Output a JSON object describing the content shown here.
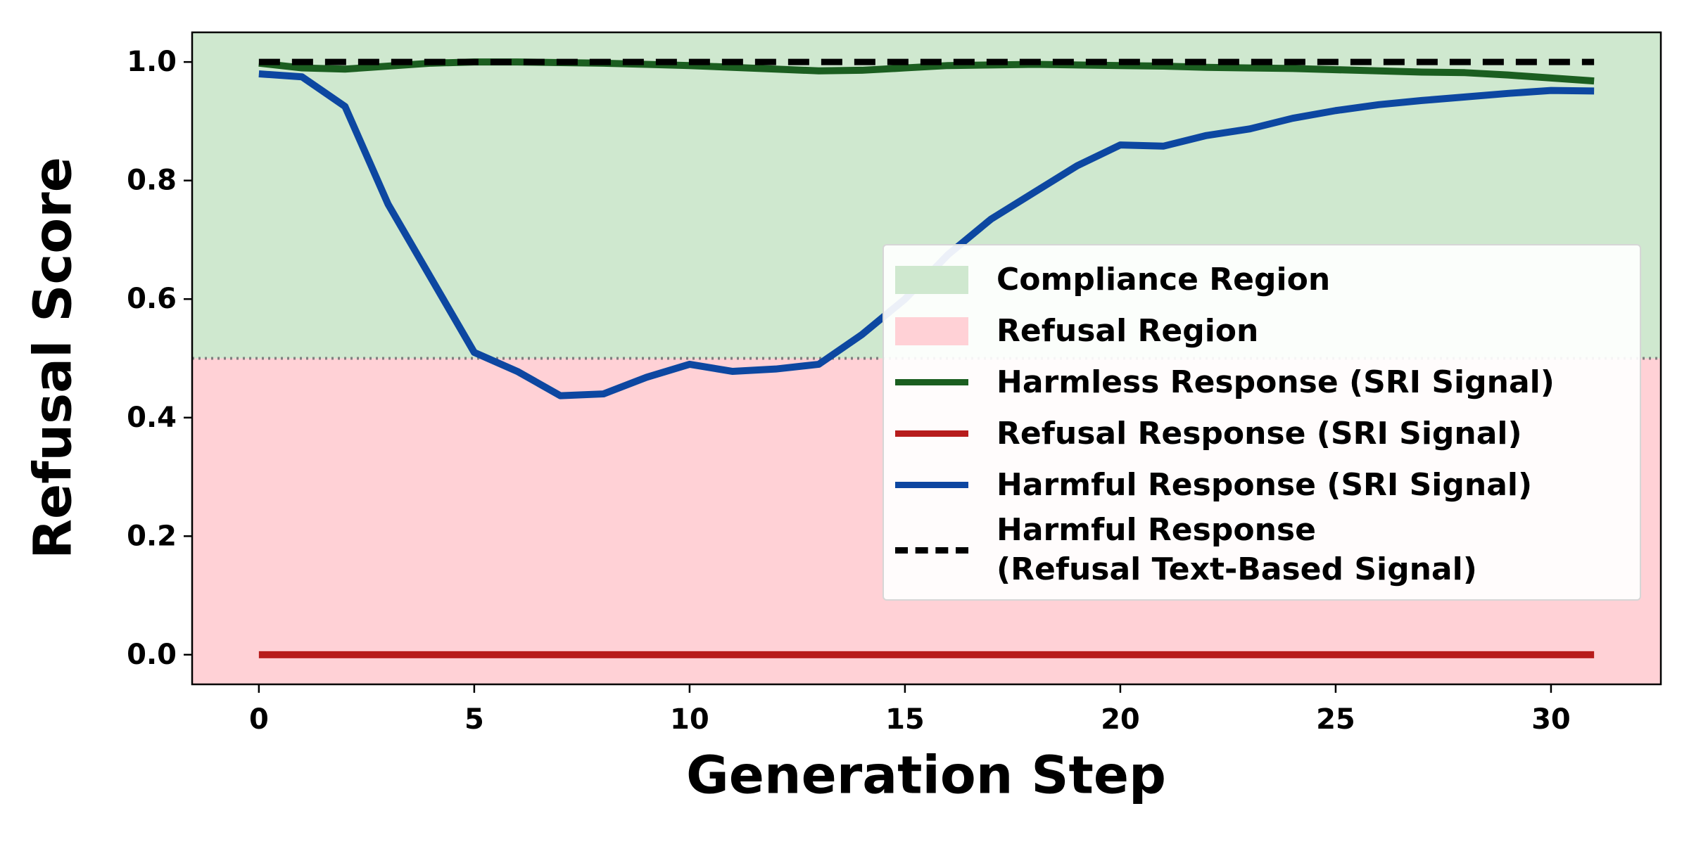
{
  "chart_data": {
    "type": "line",
    "xlabel": "Generation Step",
    "ylabel": "Refusal Score",
    "x": [
      0,
      1,
      2,
      3,
      4,
      5,
      6,
      7,
      8,
      9,
      10,
      11,
      12,
      13,
      14,
      15,
      16,
      17,
      18,
      19,
      20,
      21,
      22,
      23,
      24,
      25,
      26,
      27,
      28,
      29,
      30,
      31
    ],
    "xlim": [
      -1.55,
      32.55
    ],
    "xticks": [
      0,
      5,
      10,
      15,
      20,
      25,
      30
    ],
    "ylim": [
      -0.05,
      1.05
    ],
    "yticks": [
      {
        "value": 0,
        "label": "0.0"
      },
      {
        "value": 0.2,
        "label": "0.2"
      },
      {
        "value": 0.4,
        "label": "0.4"
      },
      {
        "value": 0.6,
        "label": "0.6"
      },
      {
        "value": 0.8,
        "label": "0.8"
      },
      {
        "value": 1,
        "label": "1.0"
      }
    ],
    "grid": false,
    "threshold": 0.5,
    "regions": [
      {
        "name": "Compliance Region",
        "color": "#cfe8cf",
        "span": [
          0.5,
          1.05
        ]
      },
      {
        "name": "Refusal Region",
        "color": "#ffd1d6",
        "span": [
          -0.05,
          0.5
        ]
      }
    ],
    "series": [
      {
        "name": "Harmless Response (SRI Signal)",
        "color": "#1b5e20",
        "style": "solid",
        "values": [
          0.998,
          0.99,
          0.988,
          0.993,
          0.998,
          1.0,
          1.0,
          0.999,
          0.998,
          0.996,
          0.994,
          0.991,
          0.988,
          0.985,
          0.986,
          0.99,
          0.994,
          0.995,
          0.996,
          0.995,
          0.994,
          0.993,
          0.991,
          0.99,
          0.989,
          0.987,
          0.985,
          0.983,
          0.982,
          0.978,
          0.973,
          0.968
        ]
      },
      {
        "name": "Refusal Response (SRI Signal)",
        "color": "#b71c1c",
        "style": "solid",
        "values": [
          0,
          0,
          0,
          0,
          0,
          0,
          0,
          0,
          0,
          0,
          0,
          0,
          0,
          0,
          0,
          0,
          0,
          0,
          0,
          0,
          0,
          0,
          0,
          0,
          0,
          0,
          0,
          0,
          0,
          0,
          0,
          0
        ]
      },
      {
        "name": "Harmful Response (SRI Signal)",
        "color": "#0d47a1",
        "style": "solid",
        "values": [
          0.98,
          0.975,
          0.925,
          0.76,
          0.635,
          0.51,
          0.478,
          0.437,
          0.44,
          0.468,
          0.49,
          0.478,
          0.482,
          0.49,
          0.54,
          0.6,
          0.675,
          0.735,
          0.78,
          0.825,
          0.86,
          0.858,
          0.876,
          0.887,
          0.905,
          0.918,
          0.928,
          0.935,
          0.941,
          0.947,
          0.952,
          0.951
        ]
      },
      {
        "name": "Harmful Response\n(Refusal Text-Based Signal)",
        "color": "#000000",
        "style": "dashed",
        "values": [
          1,
          1,
          1,
          1,
          1,
          1,
          1,
          1,
          1,
          1,
          1,
          1,
          1,
          1,
          1,
          1,
          1,
          1,
          1,
          1,
          1,
          1,
          1,
          1,
          1,
          1,
          1,
          1,
          1,
          1,
          1,
          1
        ]
      }
    ],
    "legend": "center right"
  }
}
